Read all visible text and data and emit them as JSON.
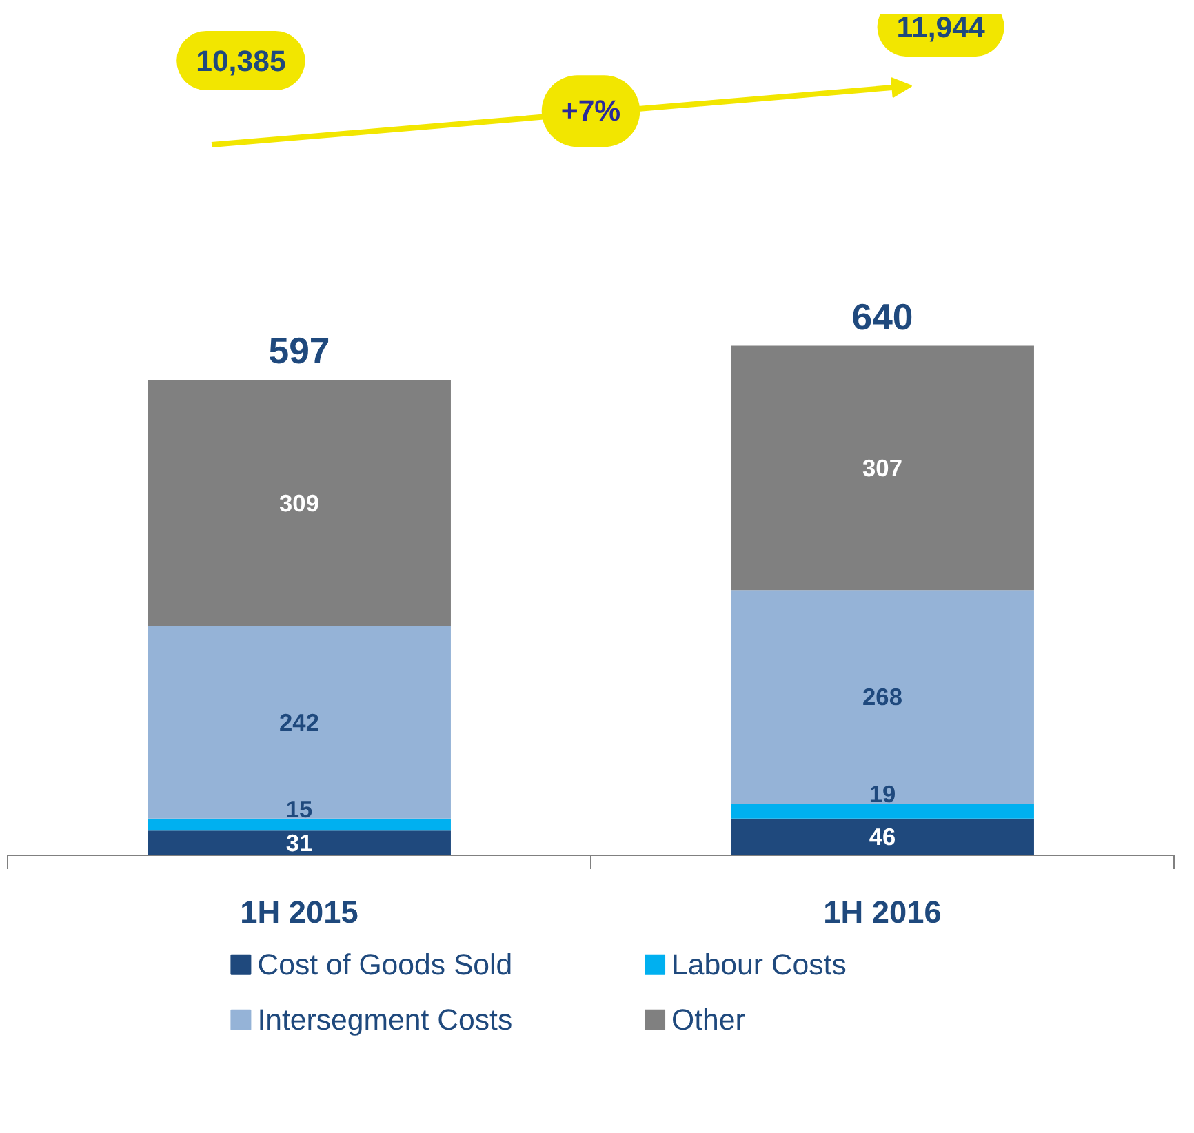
{
  "chart_data": {
    "type": "bar",
    "stacked": true,
    "categories": [
      "1H 2015",
      "1H 2016"
    ],
    "series": [
      {
        "name": "Cost of Goods Sold",
        "color": "#1f497d",
        "values": [
          31,
          46
        ]
      },
      {
        "name": "Labour Costs",
        "color": "#00b0f0",
        "values": [
          15,
          19
        ]
      },
      {
        "name": "Intersegment Costs",
        "color": "#95b3d7",
        "values": [
          242,
          268
        ]
      },
      {
        "name": "Other",
        "color": "#808080",
        "values": [
          309,
          307
        ]
      }
    ],
    "totals": [
      "597",
      "640"
    ],
    "data_labels": true,
    "grid": false,
    "legend": "bottom",
    "annotations": [
      "10,385",
      "+7%",
      "11,944"
    ]
  }
}
